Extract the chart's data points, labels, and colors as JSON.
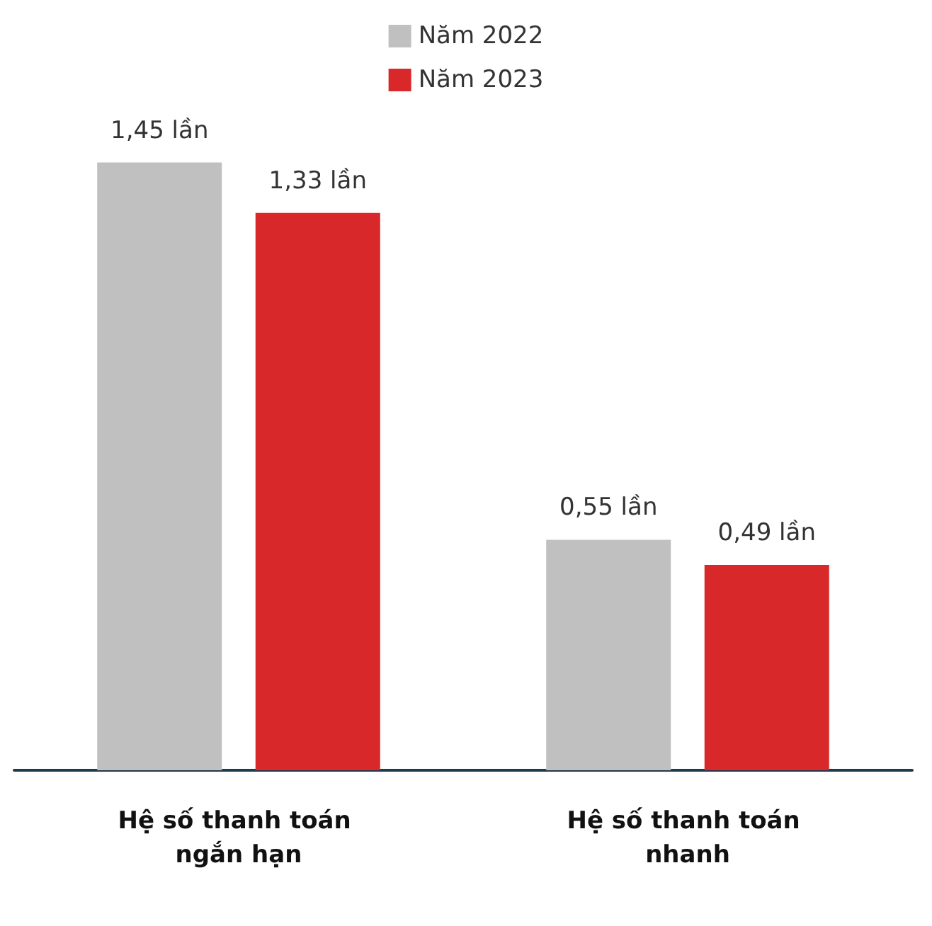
{
  "chart_data": {
    "type": "bar",
    "categories": [
      "Hệ số thanh toán ngắn hạn",
      "Hệ số thanh toán nhanh"
    ],
    "series": [
      {
        "name": "Năm 2022",
        "color": "#c0c0c0",
        "values": [
          1.45,
          0.55
        ],
        "value_labels": [
          "1,45 lần",
          "0,55 lần"
        ]
      },
      {
        "name": "Năm 2023",
        "color": "#d9282a",
        "values": [
          1.33,
          0.49
        ],
        "value_labels": [
          "1,33 lần",
          "0,49 lần"
        ]
      }
    ],
    "legend": "top"
  }
}
